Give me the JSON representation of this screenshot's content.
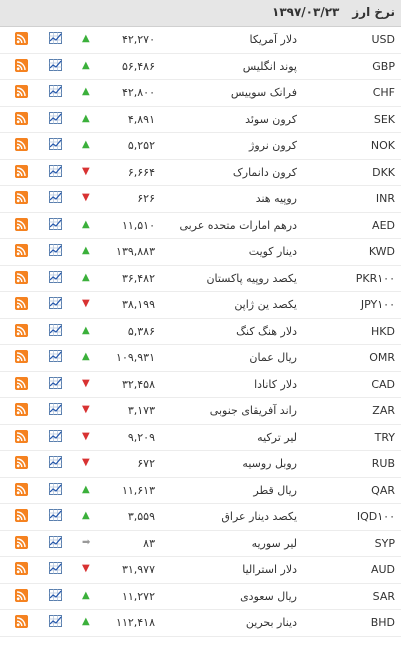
{
  "header": {
    "title": "نرخ ارز",
    "date": "۱۳۹۷/۰۳/۲۳"
  },
  "colors": {
    "up": "#3bb03b",
    "down": "#d83232",
    "flat": "#999999",
    "rss": "#f58220"
  },
  "rows": [
    {
      "code": "USD",
      "name": "دلار آمریکا",
      "price": "۴۲,۲۷۰",
      "trend": "up"
    },
    {
      "code": "GBP",
      "name": "پوند انگلیس",
      "price": "۵۶,۴۸۶",
      "trend": "up"
    },
    {
      "code": "CHF",
      "name": "فرانک سوییس",
      "price": "۴۲,۸۰۰",
      "trend": "up"
    },
    {
      "code": "SEK",
      "name": "کرون سوئد",
      "price": "۴,۸۹۱",
      "trend": "up"
    },
    {
      "code": "NOK",
      "name": "کرون نروژ",
      "price": "۵,۲۵۲",
      "trend": "up"
    },
    {
      "code": "DKK",
      "name": "کرون دانمارک",
      "price": "۶,۶۶۴",
      "trend": "down"
    },
    {
      "code": "INR",
      "name": "روپیه هند",
      "price": "۶۲۶",
      "trend": "down"
    },
    {
      "code": "AED",
      "name": "درهم امارات متحده عربی",
      "price": "۱۱,۵۱۰",
      "trend": "up"
    },
    {
      "code": "KWD",
      "name": "دینار کویت",
      "price": "۱۳۹,۸۸۳",
      "trend": "up"
    },
    {
      "code": "PKR۱۰۰",
      "name": "یکصد روپیه پاکستان",
      "price": "۳۶,۴۸۲",
      "trend": "up"
    },
    {
      "code": "JPY۱۰۰",
      "name": "یکصد ین ژاپن",
      "price": "۳۸,۱۹۹",
      "trend": "down"
    },
    {
      "code": "HKD",
      "name": "دلار هنگ کنگ",
      "price": "۵,۳۸۶",
      "trend": "up"
    },
    {
      "code": "OMR",
      "name": "ریال عمان",
      "price": "۱۰۹,۹۳۱",
      "trend": "up"
    },
    {
      "code": "CAD",
      "name": "دلار کانادا",
      "price": "۳۲,۴۵۸",
      "trend": "down"
    },
    {
      "code": "ZAR",
      "name": "راند آفریقای جنوبی",
      "price": "۳,۱۷۳",
      "trend": "down"
    },
    {
      "code": "TRY",
      "name": "لیر ترکیه",
      "price": "۹,۲۰۹",
      "trend": "down"
    },
    {
      "code": "RUB",
      "name": "روبل روسیه",
      "price": "۶۷۲",
      "trend": "down"
    },
    {
      "code": "QAR",
      "name": "ریال قطر",
      "price": "۱۱,۶۱۳",
      "trend": "up"
    },
    {
      "code": "IQD۱۰۰",
      "name": "یکصد دینار عراق",
      "price": "۳,۵۵۹",
      "trend": "up"
    },
    {
      "code": "SYP",
      "name": "لیر سوریه",
      "price": "۸۳",
      "trend": "flat"
    },
    {
      "code": "AUD",
      "name": "دلار استرالیا",
      "price": "۳۱,۹۷۷",
      "trend": "down"
    },
    {
      "code": "SAR",
      "name": "ریال سعودی",
      "price": "۱۱,۲۷۲",
      "trend": "up"
    },
    {
      "code": "BHD",
      "name": "دینار بحرین",
      "price": "۱۱۲,۴۱۸",
      "trend": "up"
    }
  ]
}
